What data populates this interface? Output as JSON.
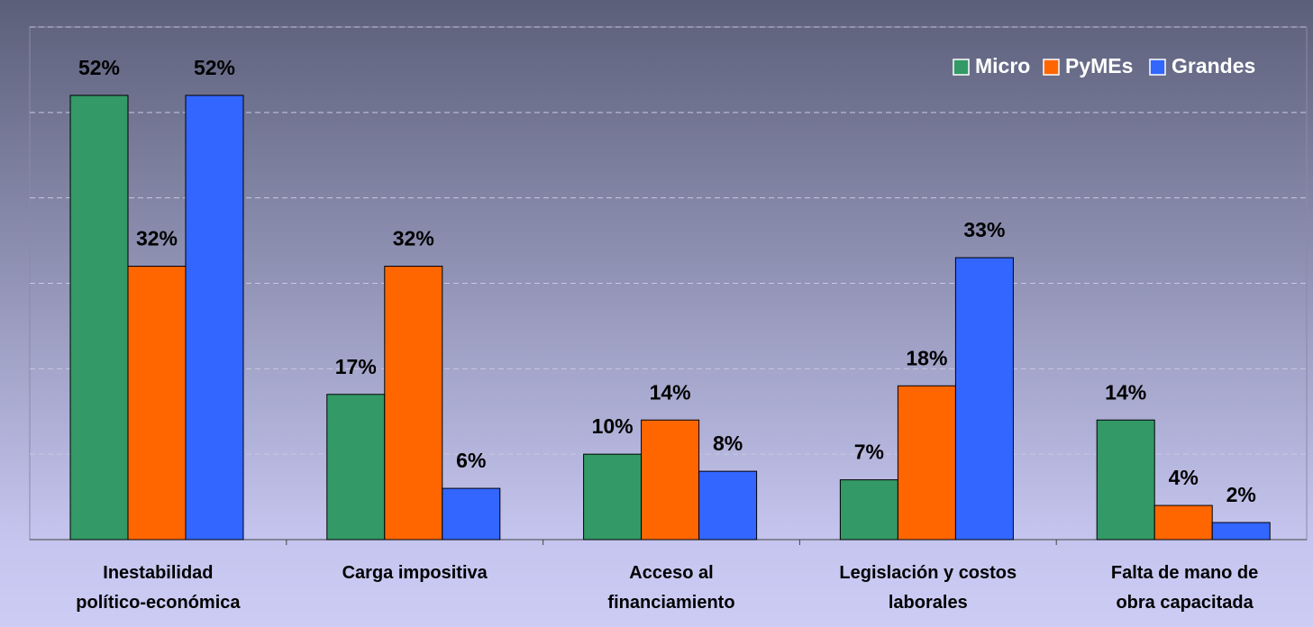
{
  "chart_data": {
    "type": "bar",
    "categories": [
      "Inestabilidad\npolítico-económica",
      "Carga impositiva",
      "Acceso al\nfinanciamiento",
      "Legislación y costos\nlaborales",
      "Falta de mano de\nobra capacitada"
    ],
    "series": [
      {
        "name": "Micro",
        "color": "#339966",
        "values": [
          52,
          17,
          10,
          7,
          14
        ],
        "value_labels": [
          "52%",
          "17%",
          "10%",
          "7%",
          "14%"
        ]
      },
      {
        "name": "PyMEs",
        "color": "#ff6600",
        "values": [
          32,
          32,
          14,
          18,
          4
        ],
        "value_labels": [
          "32%",
          "32%",
          "14%",
          "18%",
          "4%"
        ]
      },
      {
        "name": "Grandes",
        "color": "#3366ff",
        "values": [
          52,
          6,
          8,
          33,
          2
        ],
        "value_labels": [
          "52%",
          "6%",
          "8%",
          "33%",
          "2%"
        ]
      }
    ],
    "ylim": [
      0,
      60
    ],
    "yticks": [
      0,
      10,
      20,
      30,
      40,
      50,
      60
    ],
    "grid": true,
    "legend": "top-right"
  }
}
